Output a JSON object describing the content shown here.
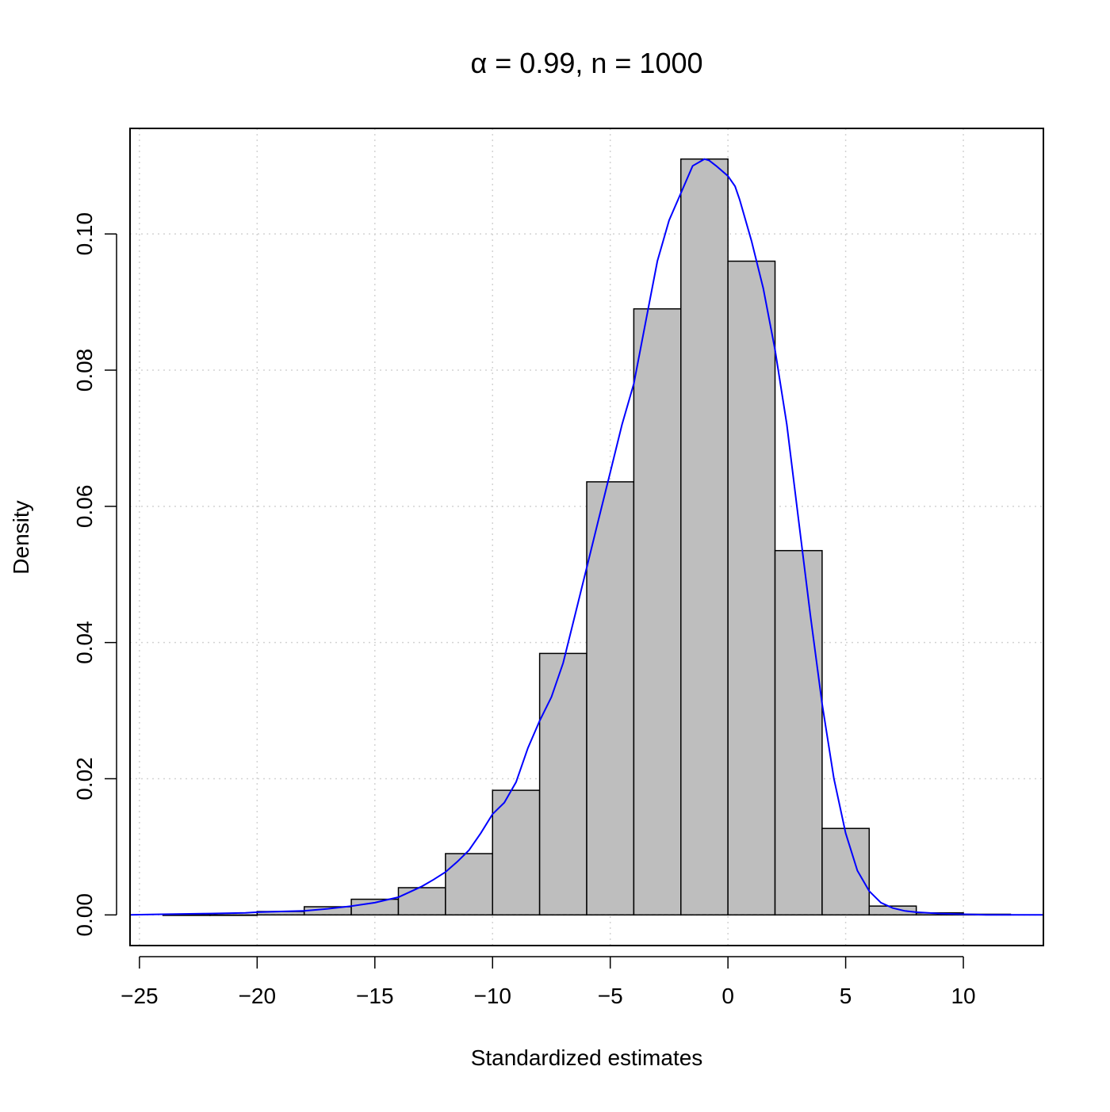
{
  "chart_data": {
    "type": "histogram",
    "title": "α = 0.99, n = 1000",
    "xlabel": "Standardized estimates",
    "ylabel": "Density",
    "xlim": [
      -25.4,
      13.4
    ],
    "ylim": [
      -0.0045,
      0.1155
    ],
    "x_ticks": [
      -25,
      -20,
      -15,
      -10,
      -5,
      0,
      5,
      10
    ],
    "x_tick_labels": [
      "−25",
      "−20",
      "−15",
      "−10",
      "−5",
      "0",
      "5",
      "10"
    ],
    "y_ticks": [
      0,
      0.02,
      0.04,
      0.06,
      0.08,
      0.1
    ],
    "y_tick_labels": [
      "0.00",
      "0.02",
      "0.04",
      "0.06",
      "0.08",
      "0.10"
    ],
    "grid": true,
    "bins": [
      {
        "x0": -24,
        "x1": -22,
        "density": 0.0
      },
      {
        "x0": -22,
        "x1": -20,
        "density": 0.0
      },
      {
        "x0": -20,
        "x1": -18,
        "density": 0.0005
      },
      {
        "x0": -18,
        "x1": -16,
        "density": 0.0012
      },
      {
        "x0": -16,
        "x1": -14,
        "density": 0.0023
      },
      {
        "x0": -14,
        "x1": -12,
        "density": 0.004
      },
      {
        "x0": -12,
        "x1": -10,
        "density": 0.009
      },
      {
        "x0": -10,
        "x1": -8,
        "density": 0.0183
      },
      {
        "x0": -8,
        "x1": -6,
        "density": 0.0384
      },
      {
        "x0": -6,
        "x1": -4,
        "density": 0.0636
      },
      {
        "x0": -4,
        "x1": -2,
        "density": 0.089
      },
      {
        "x0": -2,
        "x1": 0,
        "density": 0.111
      },
      {
        "x0": 0,
        "x1": 2,
        "density": 0.096
      },
      {
        "x0": 2,
        "x1": 4,
        "density": 0.0535
      },
      {
        "x0": 4,
        "x1": 6,
        "density": 0.0127
      },
      {
        "x0": 6,
        "x1": 8,
        "density": 0.0013
      },
      {
        "x0": 8,
        "x1": 10,
        "density": 0.0003
      },
      {
        "x0": 10,
        "x1": 12,
        "density": 0.0001
      }
    ],
    "density_curve": {
      "color": "#0000ff",
      "x": [
        -25.4,
        -24,
        -22,
        -20.5,
        -20,
        -19,
        -18,
        -17,
        -16,
        -15,
        -14.5,
        -14,
        -13,
        -12.5,
        -12,
        -11.5,
        -11,
        -10.5,
        -10,
        -9.5,
        -9,
        -8.5,
        -8,
        -7.5,
        -7,
        -6.5,
        -6,
        -5.5,
        -5,
        -4.5,
        -4,
        -3.5,
        -3,
        -2.5,
        -2,
        -1.5,
        -1,
        -0.8,
        -0.5,
        0,
        0.3,
        0.5,
        1,
        1.5,
        2,
        2.5,
        3,
        3.5,
        4,
        4.5,
        5,
        5.5,
        6,
        6.5,
        7,
        7.5,
        8,
        9,
        10,
        11,
        12,
        13.4
      ],
      "y": [
        0.0,
        0.0001,
        0.0002,
        0.0003,
        0.0004,
        0.0005,
        0.0006,
        0.0009,
        0.0013,
        0.0018,
        0.0022,
        0.0026,
        0.0042,
        0.0052,
        0.0063,
        0.0078,
        0.0095,
        0.012,
        0.0148,
        0.0165,
        0.0195,
        0.0245,
        0.0285,
        0.032,
        0.037,
        0.044,
        0.051,
        0.058,
        0.065,
        0.072,
        0.078,
        0.087,
        0.096,
        0.102,
        0.106,
        0.11,
        0.111,
        0.1108,
        0.11,
        0.1085,
        0.107,
        0.105,
        0.099,
        0.092,
        0.083,
        0.072,
        0.058,
        0.044,
        0.031,
        0.02,
        0.012,
        0.0065,
        0.0035,
        0.0018,
        0.001,
        0.0006,
        0.0004,
        0.0002,
        0.0001,
        0.0,
        0.0,
        0.0
      ]
    }
  }
}
